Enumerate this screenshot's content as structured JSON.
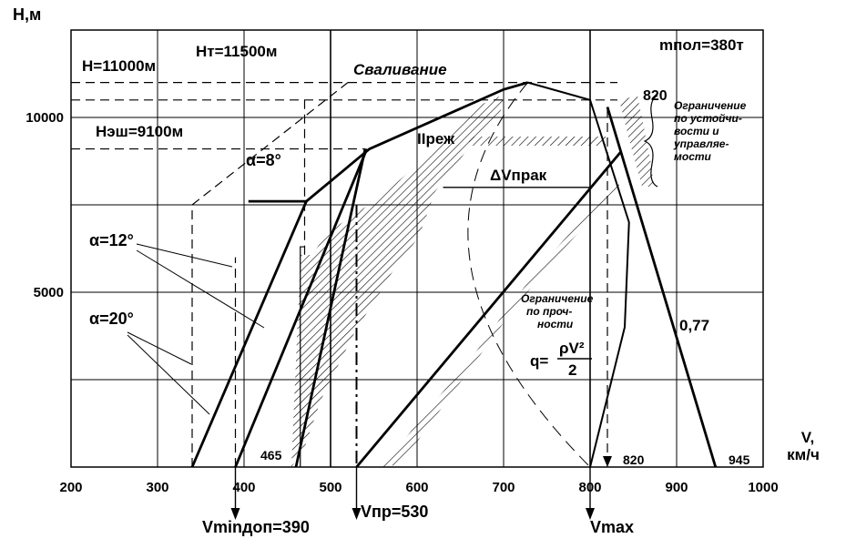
{
  "chart_data": {
    "type": "line",
    "title": "",
    "ylabel": "H,м",
    "xlabel_v": "V,",
    "xlabel_unit": "км/ч",
    "xlim": [
      200,
      1000
    ],
    "ylim": [
      0,
      12500
    ],
    "x_ticks": [
      "200",
      "300",
      "400",
      "500",
      "600",
      "700",
      "800",
      "900",
      "1000"
    ],
    "y_ticks": [
      "5000",
      "10000"
    ],
    "series": [
      {
        "name": "alpha_20",
        "label_text": "α=20°",
        "points": [
          [
            340,
            0
          ],
          [
            472,
            7600
          ],
          [
            545,
            9100
          ],
          [
            700,
            10800
          ],
          [
            728,
            11000
          ]
        ]
      },
      {
        "name": "alpha_12",
        "label_text": "α=12°",
        "points": [
          [
            390,
            0
          ],
          [
            542,
            9100
          ]
        ]
      },
      {
        "name": "alpha_8",
        "label_text": "α=8°",
        "points": [
          [
            460,
            0
          ],
          [
            540,
            9100
          ]
        ]
      },
      {
        "name": "prak",
        "points": [
          [
            530,
            0
          ],
          [
            835,
            9000
          ]
        ]
      },
      {
        "name": "m077",
        "label_text": "0,77",
        "points": [
          [
            820,
            10300
          ],
          [
            945,
            0
          ]
        ]
      },
      {
        "name": "q_curve",
        "points": [
          [
            800,
            0
          ],
          [
            840,
            4000
          ],
          [
            845,
            7000
          ],
          [
            800,
            10500
          ],
          [
            728,
            11000
          ]
        ]
      }
    ],
    "annotations": {
      "h_11000": "H=11000м",
      "h_t": "Hт=11500м",
      "h_esh": "Hэш=9100м",
      "m_pol": "mпол=380т",
      "svalivanie": "Сваливание",
      "pi_rezh": "IIреж",
      "dv_prak": "ΔVпрак",
      "ogr_prochnost_1": "Ограничение",
      "ogr_prochnost_2": "по проч-",
      "ogr_prochnost_3": "ности",
      "ogr_ustoich_1": "Ограничение",
      "ogr_ustoich_2": "по устойчи-",
      "ogr_ustoich_3": "вости и",
      "ogr_ustoich_4": "управляе-",
      "ogr_ustoich_5": "мости",
      "val_820_top": "820",
      "val_820_bottom": "820",
      "val_945": "945",
      "val_465": "465",
      "q_formula_lhs": "q=",
      "q_formula_num": "ρV²",
      "q_formula_den": "2",
      "v_min": "Vminдоп=390",
      "v_pr": "Vпр=530",
      "v_max": "Vmax"
    }
  }
}
